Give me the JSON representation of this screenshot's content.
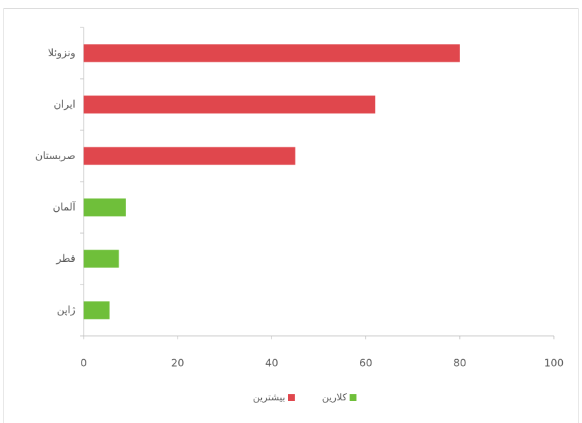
{
  "chart_data": {
    "type": "bar",
    "orientation": "horizontal",
    "categories": [
      "ونزوئلا",
      "ایران",
      "صربستان",
      "آلمان",
      "قطر",
      "ژاپن"
    ],
    "series": [
      {
        "name": "بیشترین",
        "color": "#e0474d",
        "values": [
          80,
          62,
          45,
          null,
          null,
          null
        ]
      },
      {
        "name": "کلارین",
        "color": "#6fbf3a",
        "values": [
          null,
          null,
          null,
          9,
          7.5,
          5.5
        ]
      }
    ],
    "xlim": [
      0,
      100
    ],
    "xticks": [
      0,
      20,
      40,
      60,
      80,
      100
    ],
    "grid": false,
    "legend": "bottom"
  }
}
